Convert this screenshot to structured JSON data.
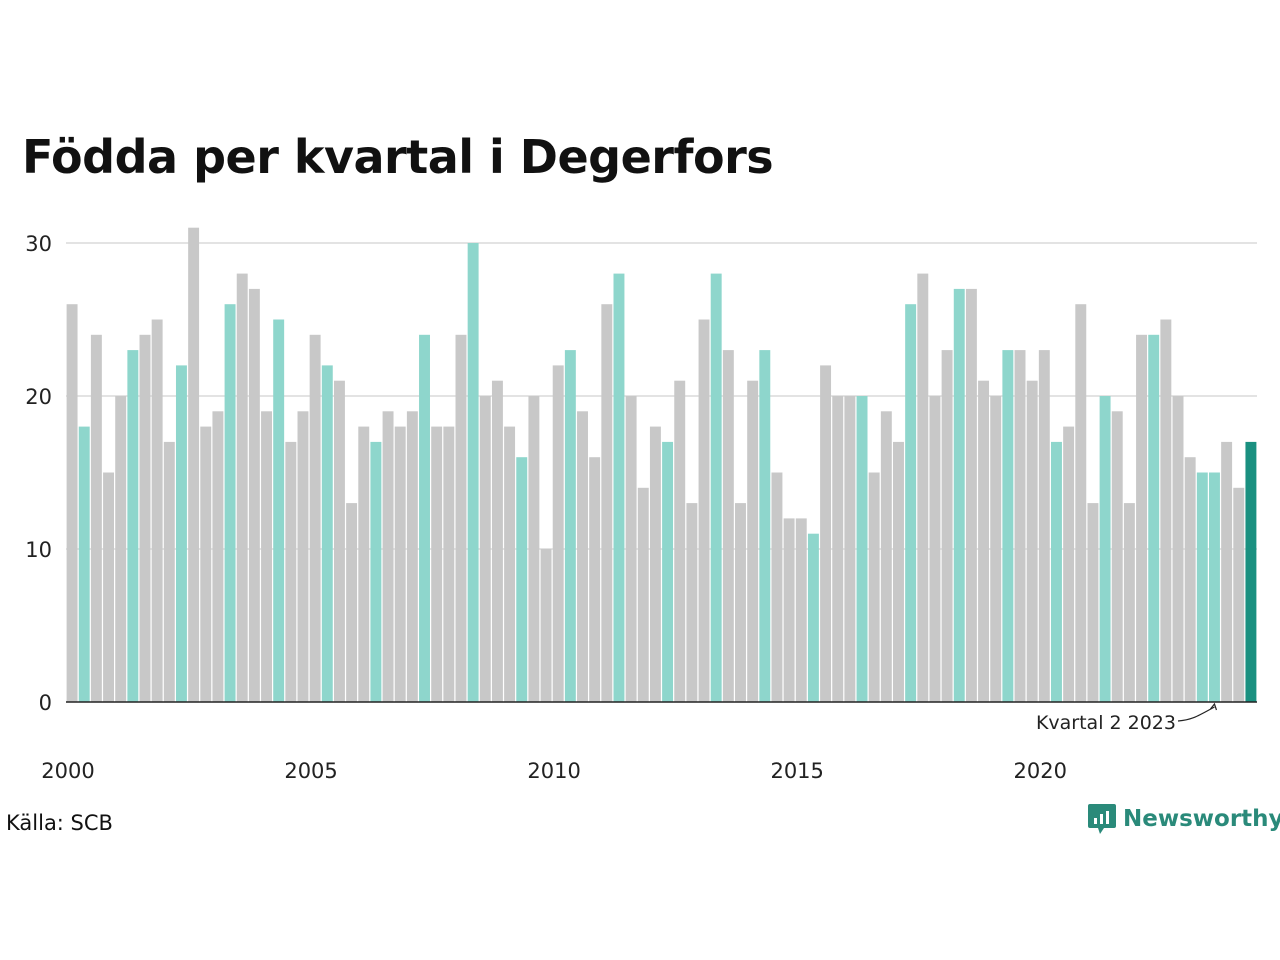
{
  "chart_data": {
    "type": "bar",
    "title": "Födda per kvartal i Degerfors",
    "xlabel": "",
    "ylabel": "",
    "ylim": [
      0,
      30
    ],
    "yticks": [
      "0",
      "10",
      "20",
      "30"
    ],
    "xticks": [
      "2000",
      "2005",
      "2010",
      "2015",
      "2020"
    ],
    "grid": true,
    "source": "Källa: SCB",
    "brand": "Newsworthy",
    "annotation": "Kvartal 2 2023",
    "colors": {
      "other": "#c8c8c8",
      "same_quarter": "#8ed6cc",
      "latest": "#1a9080"
    },
    "bar_color_rule": "Quarter 2 of each year highlighted in turquoise, latest quarter in dark teal",
    "values": [
      26,
      18,
      24,
      15,
      20,
      23,
      24,
      25,
      17,
      22,
      31,
      18,
      19,
      26,
      28,
      27,
      19,
      25,
      17,
      19,
      24,
      22,
      21,
      13,
      18,
      17,
      19,
      18,
      19,
      24,
      18,
      18,
      24,
      30,
      20,
      21,
      18,
      16,
      20,
      10,
      22,
      23,
      19,
      16,
      26,
      28,
      20,
      14,
      18,
      17,
      21,
      13,
      25,
      28,
      23,
      13,
      21,
      23,
      15,
      12,
      12,
      11,
      22,
      20,
      20,
      20,
      15,
      19,
      17,
      26,
      28,
      20,
      23,
      27,
      27,
      21,
      20,
      23,
      23,
      21,
      23,
      17,
      18,
      26,
      13,
      20,
      19,
      13,
      24,
      24,
      25,
      20,
      16,
      15,
      15,
      17,
      14,
      17
    ],
    "highlight": [
      0,
      1,
      0,
      0,
      0,
      1,
      0,
      0,
      0,
      1,
      0,
      0,
      0,
      1,
      0,
      0,
      0,
      1,
      0,
      0,
      0,
      1,
      0,
      0,
      0,
      1,
      0,
      0,
      0,
      1,
      0,
      0,
      0,
      1,
      0,
      0,
      0,
      1,
      0,
      0,
      0,
      1,
      0,
      0,
      0,
      1,
      0,
      0,
      0,
      1,
      0,
      0,
      0,
      1,
      0,
      0,
      0,
      1,
      0,
      0,
      0,
      1,
      0,
      0,
      0,
      1,
      0,
      0,
      0,
      1,
      0,
      0,
      0,
      1,
      0,
      0,
      0,
      1,
      0,
      0,
      0,
      1,
      0,
      0,
      0,
      1,
      0,
      0,
      0,
      1,
      0,
      0,
      0,
      1,
      1,
      0,
      0,
      2
    ]
  }
}
